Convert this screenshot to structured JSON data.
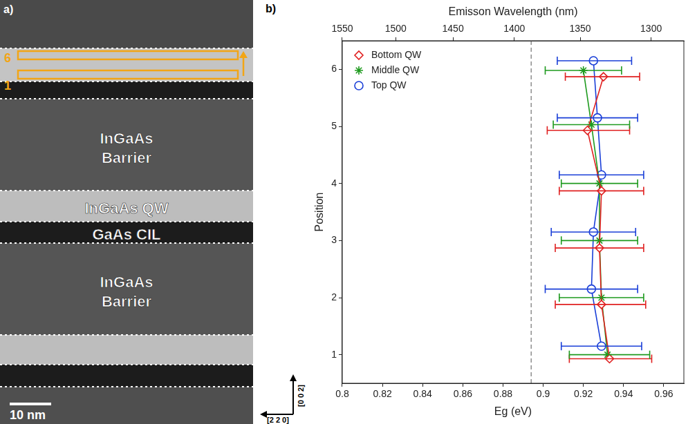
{
  "image_panel": {
    "panel_label": "a)",
    "layers": [
      [
        "InGaAs",
        "Barrier"
      ],
      [
        "InGaAs QW"
      ],
      [
        "GaAs CIL"
      ],
      [
        "InGaAs",
        "Barrier"
      ]
    ],
    "position_marks": [
      "6",
      "1"
    ],
    "scale_bar": "10 nm",
    "directions": [
      "[0 0 2]",
      "[2 2 0]"
    ]
  },
  "chart_data": {
    "type": "scatter",
    "panel_label": "b)",
    "x_label": "Eg (eV)",
    "y_label": "Position",
    "x2_label": "Emisson Wavelength (nm)",
    "xlim": [
      0.8,
      0.97
    ],
    "xticks": [
      0.8,
      0.82,
      0.84,
      0.86,
      0.88,
      0.9,
      0.92,
      0.94,
      0.96
    ],
    "x2ticks": [
      {
        "value": 0.8,
        "label": "1550"
      },
      {
        "value": 0.8266,
        "label": "1500"
      },
      {
        "value": 0.8551,
        "label": "1450"
      },
      {
        "value": 0.8856,
        "label": "1400"
      },
      {
        "value": 0.9184,
        "label": "1350"
      },
      {
        "value": 0.9537,
        "label": "1300"
      }
    ],
    "ylim": [
      0.5,
      6.5
    ],
    "yticks": [
      1,
      2,
      3,
      4,
      5,
      6
    ],
    "grid": false,
    "legend": "upper left",
    "reference_line": {
      "x": 0.894,
      "line_style": "dashed"
    },
    "series": [
      {
        "name": "Bottom QW",
        "color": "#e02020",
        "marker": "diamond",
        "x": [
          0.933,
          0.929,
          0.928,
          0.929,
          0.922,
          0.93
        ],
        "y": [
          0.93,
          1.88,
          2.87,
          3.87,
          4.93,
          5.87
        ],
        "error_low": [
          0.913,
          0.906,
          0.906,
          0.908,
          0.902,
          0.911
        ],
        "error_high": [
          0.954,
          0.951,
          0.95,
          0.95,
          0.943,
          0.948
        ]
      },
      {
        "name": "Middle QW",
        "color": "#1e9a1e",
        "marker": "star",
        "x": [
          0.932,
          0.929,
          0.928,
          0.928,
          0.924,
          0.92
        ],
        "y": [
          1.0,
          2.0,
          3.0,
          4.0,
          5.03,
          5.98
        ],
        "error_low": [
          0.913,
          0.908,
          0.909,
          0.909,
          0.905,
          0.901
        ],
        "error_high": [
          0.953,
          0.95,
          0.947,
          0.947,
          0.943,
          0.939
        ]
      },
      {
        "name": "Top QW",
        "color": "#1a3fd8",
        "marker": "circle",
        "x": [
          0.929,
          0.924,
          0.925,
          0.929,
          0.927,
          0.925
        ],
        "y": [
          1.15,
          2.15,
          3.15,
          4.15,
          5.15,
          6.15
        ],
        "error_low": [
          0.909,
          0.901,
          0.904,
          0.908,
          0.907,
          0.907
        ],
        "error_high": [
          0.949,
          0.947,
          0.946,
          0.95,
          0.947,
          0.944
        ]
      }
    ]
  }
}
